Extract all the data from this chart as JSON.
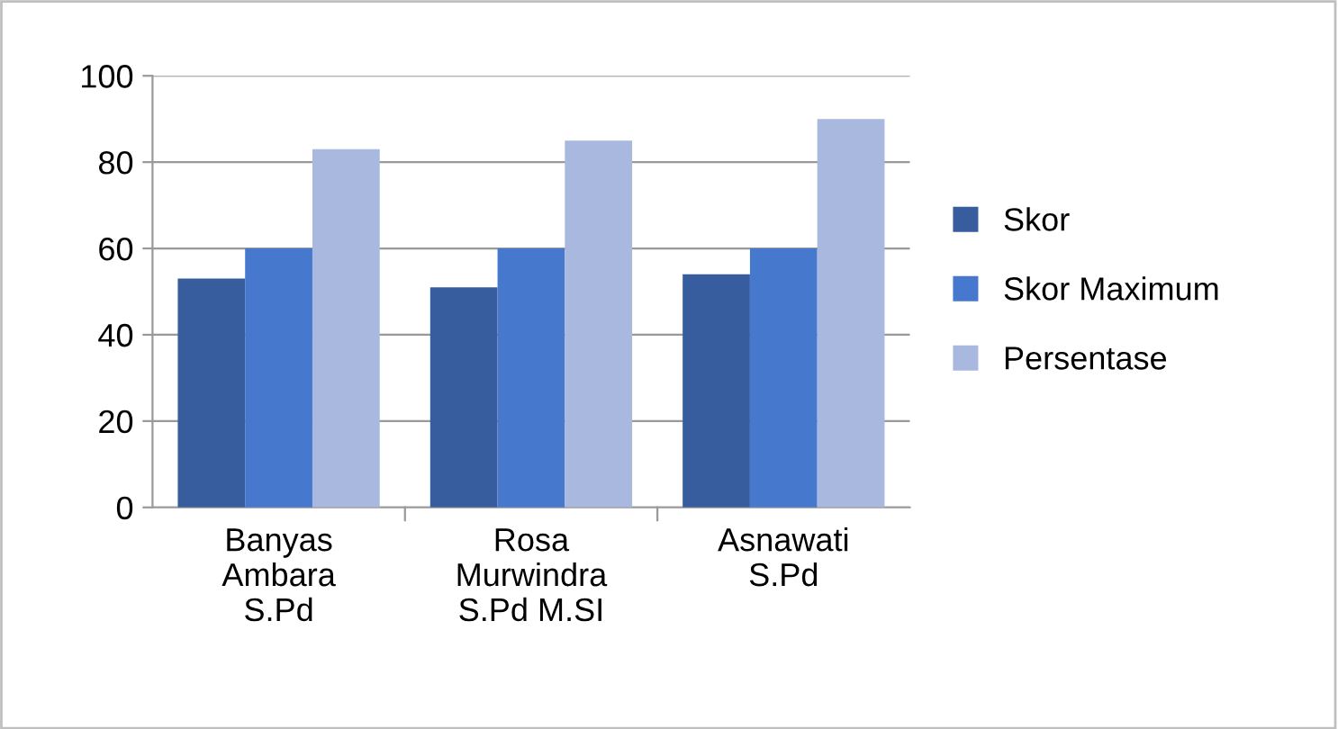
{
  "chart_data": {
    "type": "bar",
    "categories": [
      "Banyas\nAmbara\nS.Pd",
      "Rosa\nMurwindra\nS.Pd M.SI",
      "Asnawati\nS.Pd"
    ],
    "series": [
      {
        "name": "Skor",
        "color": "#385d9f",
        "values": [
          53,
          51,
          54
        ]
      },
      {
        "name": "Skor Maximum",
        "color": "#4678cd",
        "values": [
          60,
          60,
          60
        ]
      },
      {
        "name": "Persentase",
        "color": "#a9b8de",
        "values": [
          83,
          85,
          90
        ]
      }
    ],
    "ylim": [
      0,
      100
    ],
    "yticks": [
      0,
      20,
      40,
      60,
      80,
      100
    ],
    "grid": "y",
    "legend": "right"
  }
}
